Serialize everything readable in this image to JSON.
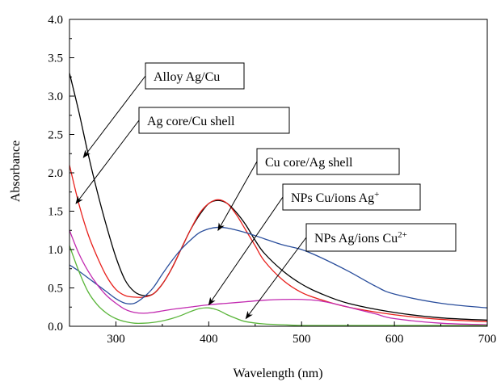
{
  "chart_data": {
    "type": "line",
    "xlabel": "Wavelength (nm)",
    "ylabel": "Absorbance",
    "xlim": [
      250,
      700
    ],
    "ylim": [
      0,
      4.0
    ],
    "x_ticks": [
      300,
      400,
      500,
      600,
      700
    ],
    "y_ticks": [
      0.0,
      0.5,
      1.0,
      1.5,
      2.0,
      2.5,
      3.0,
      3.5,
      4.0
    ],
    "x_tick_labels": [
      "300",
      "400",
      "500",
      "600",
      "700"
    ],
    "y_tick_labels": [
      "0.0",
      "0.5",
      "1.0",
      "1.5",
      "2.0",
      "2.5",
      "3.0",
      "3.5",
      "4.0"
    ],
    "grid": false,
    "series": [
      {
        "color": "#000000",
        "x": [
          250,
          260,
          270,
          280,
          290,
          300,
          310,
          320,
          330,
          340,
          350,
          360,
          370,
          380,
          390,
          400,
          410,
          420,
          430,
          440,
          450,
          460,
          480,
          500,
          520,
          550,
          600,
          650,
          700
        ],
        "y": [
          3.3,
          2.8,
          2.25,
          1.75,
          1.3,
          0.9,
          0.6,
          0.45,
          0.4,
          0.42,
          0.55,
          0.75,
          1.0,
          1.25,
          1.45,
          1.6,
          1.64,
          1.6,
          1.48,
          1.32,
          1.12,
          0.95,
          0.72,
          0.55,
          0.43,
          0.3,
          0.18,
          0.11,
          0.08
        ]
      },
      {
        "color": "#e8201c",
        "x": [
          250,
          260,
          270,
          280,
          290,
          300,
          310,
          320,
          330,
          340,
          350,
          360,
          370,
          380,
          390,
          400,
          410,
          420,
          430,
          440,
          450,
          460,
          480,
          500,
          520,
          550,
          600,
          650,
          700
        ],
        "y": [
          2.1,
          1.6,
          1.2,
          0.9,
          0.65,
          0.48,
          0.4,
          0.38,
          0.38,
          0.42,
          0.55,
          0.75,
          1.0,
          1.25,
          1.47,
          1.6,
          1.65,
          1.6,
          1.45,
          1.25,
          1.05,
          0.85,
          0.6,
          0.44,
          0.35,
          0.25,
          0.15,
          0.09,
          0.06
        ]
      },
      {
        "color": "#2a4e9c",
        "x": [
          250,
          260,
          270,
          280,
          290,
          300,
          310,
          320,
          330,
          340,
          350,
          360,
          370,
          380,
          390,
          400,
          410,
          420,
          440,
          460,
          480,
          500,
          520,
          550,
          580,
          600,
          650,
          700
        ],
        "y": [
          0.8,
          0.72,
          0.63,
          0.54,
          0.45,
          0.36,
          0.3,
          0.3,
          0.38,
          0.5,
          0.68,
          0.85,
          1.0,
          1.12,
          1.22,
          1.27,
          1.29,
          1.28,
          1.22,
          1.14,
          1.06,
          1.0,
          0.9,
          0.72,
          0.52,
          0.42,
          0.3,
          0.24
        ]
      },
      {
        "color": "#c22ab0",
        "x": [
          250,
          260,
          270,
          280,
          290,
          300,
          310,
          320,
          330,
          340,
          350,
          360,
          380,
          400,
          420,
          440,
          460,
          480,
          500,
          520,
          540,
          560,
          580,
          600,
          650,
          700
        ],
        "y": [
          1.25,
          0.95,
          0.72,
          0.54,
          0.4,
          0.3,
          0.22,
          0.18,
          0.17,
          0.18,
          0.2,
          0.22,
          0.25,
          0.28,
          0.3,
          0.32,
          0.34,
          0.35,
          0.35,
          0.33,
          0.28,
          0.22,
          0.16,
          0.1,
          0.04,
          0.02
        ]
      },
      {
        "color": "#5ab53a",
        "x": [
          250,
          260,
          270,
          280,
          290,
          300,
          310,
          320,
          330,
          340,
          350,
          360,
          370,
          380,
          390,
          400,
          410,
          420,
          430,
          440,
          460,
          480,
          500,
          550,
          600,
          650,
          700
        ],
        "y": [
          1.05,
          0.72,
          0.45,
          0.28,
          0.17,
          0.1,
          0.06,
          0.04,
          0.04,
          0.05,
          0.07,
          0.1,
          0.14,
          0.19,
          0.23,
          0.24,
          0.21,
          0.15,
          0.1,
          0.06,
          0.03,
          0.02,
          0.01,
          0.01,
          0.01,
          0.01,
          0.01
        ]
      }
    ],
    "annotations": [
      {
        "text": "Alloy Ag/Cu",
        "sup": "",
        "arrow_to": [
          265,
          2.2
        ]
      },
      {
        "text": "Ag core/Cu shell",
        "sup": "",
        "arrow_to": [
          257,
          1.6
        ]
      },
      {
        "text": "Cu core/Ag shell",
        "sup": "",
        "arrow_to": [
          410,
          1.25
        ]
      },
      {
        "text": "NPs Cu/ions Ag",
        "sup": "+",
        "arrow_to": [
          400,
          0.28
        ]
      },
      {
        "text": "NPs Ag/ions Cu",
        "sup": "2+",
        "arrow_to": [
          440,
          0.1
        ]
      }
    ]
  }
}
